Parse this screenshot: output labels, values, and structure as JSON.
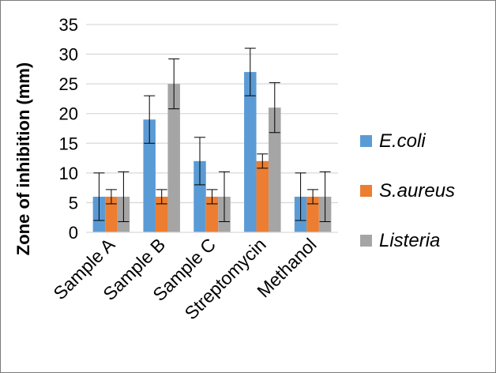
{
  "chart_data": {
    "type": "bar",
    "title": "",
    "xlabel": "",
    "ylabel": "Zone of inhibition  (mm)",
    "ylim": [
      0,
      35
    ],
    "yticks": [
      0,
      5,
      10,
      15,
      20,
      25,
      30,
      35
    ],
    "grid": true,
    "legend_position": "right",
    "categories": [
      "Sample A",
      "Sample B",
      "Sample C",
      "Streptomycin",
      "Methanol"
    ],
    "series": [
      {
        "name": "E.coli",
        "color": "#5b9bd5",
        "values": [
          6,
          19,
          12,
          27,
          6
        ],
        "errors": [
          4,
          4,
          4,
          4,
          4
        ]
      },
      {
        "name": "S.aureus",
        "color": "#ed7d31",
        "values": [
          6,
          6,
          6,
          12,
          6
        ],
        "errors": [
          1.2,
          1.2,
          1.2,
          1.2,
          1.2
        ]
      },
      {
        "name": "Listeria",
        "color": "#a5a5a5",
        "values": [
          6,
          25,
          6,
          21,
          6
        ],
        "errors": [
          4.2,
          4.2,
          4.2,
          4.2,
          4.2
        ]
      }
    ]
  }
}
